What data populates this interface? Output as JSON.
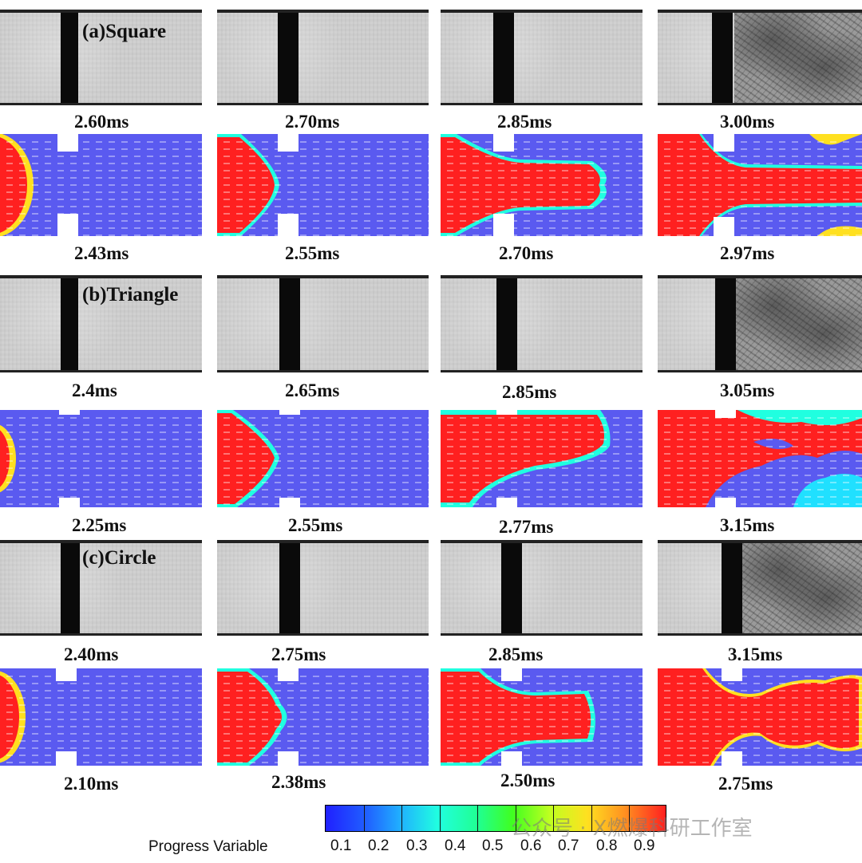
{
  "cases": [
    {
      "label": "(a)Square",
      "exp_times": [
        "2.60ms",
        "2.70ms",
        "2.85ms",
        "3.00ms"
      ],
      "sim_times": [
        "2.43ms",
        "2.55ms",
        "2.70ms",
        "2.97ms"
      ]
    },
    {
      "label": "(b)Triangle",
      "exp_times": [
        "2.4ms",
        "2.65ms",
        "2.85ms",
        "3.05ms"
      ],
      "sim_times": [
        "2.25ms",
        "2.55ms",
        "2.77ms",
        "3.15ms"
      ]
    },
    {
      "label": "(c)Circle",
      "exp_times": [
        "2.40ms",
        "2.75ms",
        "2.85ms",
        "3.15ms"
      ],
      "sim_times": [
        "2.10ms",
        "2.38ms",
        "2.50ms",
        "2.75ms"
      ]
    }
  ],
  "colorbar": {
    "title": "Progress Variable",
    "ticks": [
      "0.1",
      "0.2",
      "0.3",
      "0.4",
      "0.5",
      "0.6",
      "0.7",
      "0.8",
      "0.9"
    ],
    "low_color": "#2020ff",
    "high_color": "#ff2020"
  },
  "watermark": "公众号 · X燃爆科研工作室"
}
